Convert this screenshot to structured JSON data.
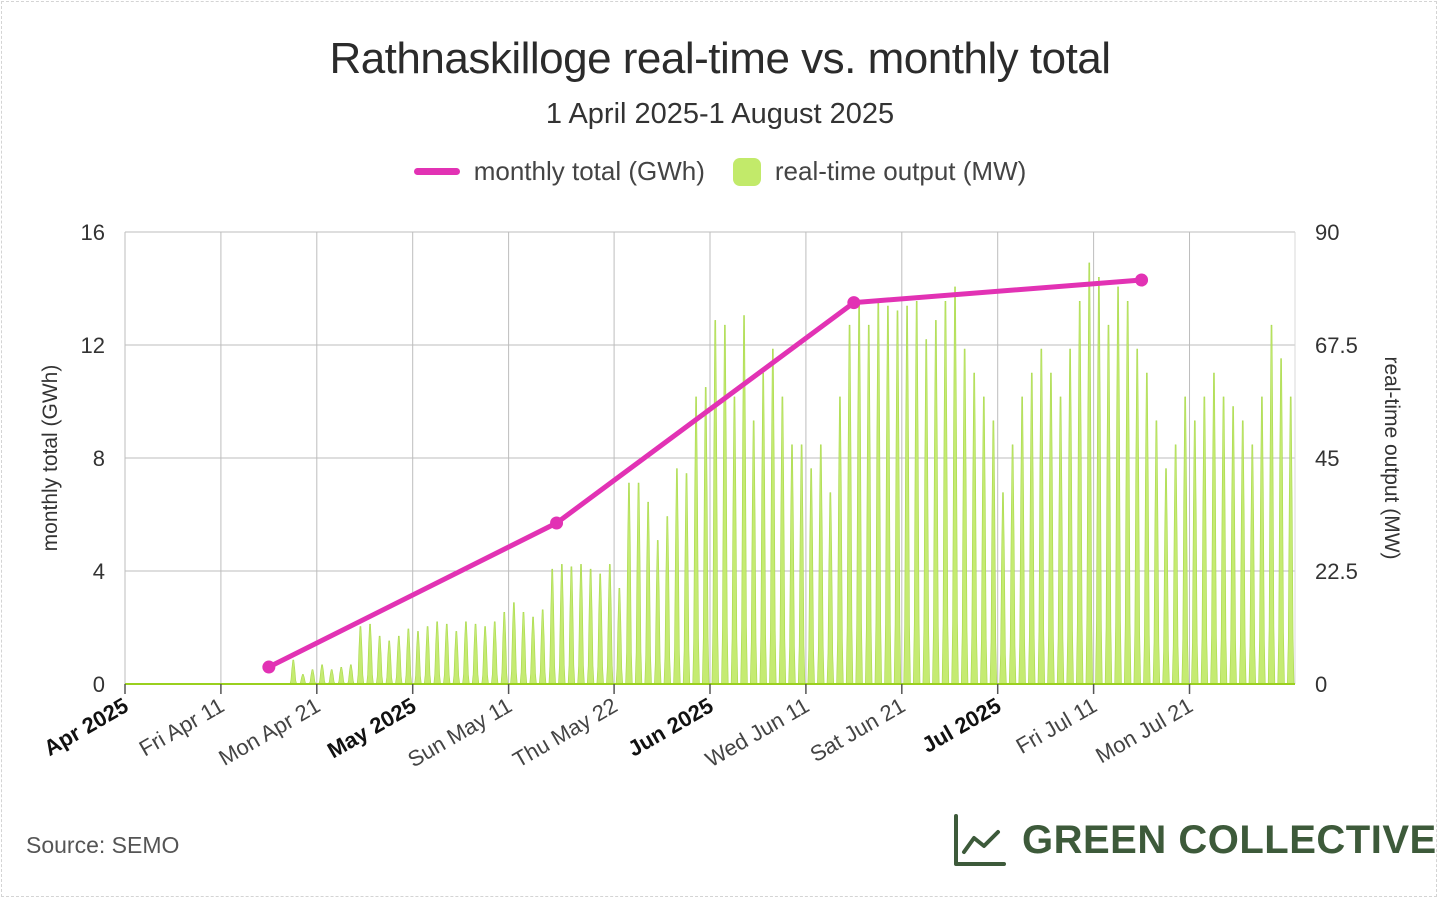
{
  "page": {
    "title": "Rathnaskilloge real-time vs. monthly total",
    "subtitle": "1 April 2025-1 August 2025",
    "source": "Source: SEMO",
    "brand": "GREEN COLLECTIVE"
  },
  "legend": [
    {
      "label": "monthly total (GWh)",
      "color": "#e232b4",
      "kind": "line"
    },
    {
      "label": "real-time output (MW)",
      "color": "#c2ea6a",
      "kind": "area"
    }
  ],
  "chart_data": {
    "type": "line",
    "title": "Rathnaskilloge real-time vs. monthly total",
    "subtitle": "1 April 2025-1 August 2025",
    "y_left": {
      "label": "monthly total (GWh)",
      "ticks": [
        "0",
        "4",
        "8",
        "12",
        "16"
      ],
      "range": [
        0,
        16
      ]
    },
    "y_right": {
      "label": "real-time output (MW)",
      "ticks": [
        "0",
        "22.5",
        "45",
        "67.5",
        "90"
      ],
      "range": [
        0,
        90
      ]
    },
    "x_axis": {
      "range": [
        "2025-04-01",
        "2025-08-01"
      ],
      "ticks": [
        {
          "date": "2025-04-01",
          "label": "Apr 2025",
          "bold": true
        },
        {
          "date": "2025-04-11",
          "label": "Fri Apr 11",
          "bold": false
        },
        {
          "date": "2025-04-21",
          "label": "Mon Apr 21",
          "bold": false
        },
        {
          "date": "2025-05-01",
          "label": "May 2025",
          "bold": true
        },
        {
          "date": "2025-05-11",
          "label": "Sun May 11",
          "bold": false
        },
        {
          "date": "2025-05-22",
          "label": "Thu May 22",
          "bold": false
        },
        {
          "date": "2025-06-01",
          "label": "Jun 2025",
          "bold": true
        },
        {
          "date": "2025-06-11",
          "label": "Wed Jun 11",
          "bold": false
        },
        {
          "date": "2025-06-21",
          "label": "Sat Jun 21",
          "bold": false
        },
        {
          "date": "2025-07-01",
          "label": "Jul 2025",
          "bold": true
        },
        {
          "date": "2025-07-11",
          "label": "Fri Jul 11",
          "bold": false
        },
        {
          "date": "2025-07-21",
          "label": "Mon Jul 21",
          "bold": false
        }
      ]
    },
    "grid": true,
    "series": [
      {
        "name": "monthly total (GWh)",
        "axis": "left",
        "color": "#e232b4",
        "points": [
          {
            "x": "2025-04-16",
            "y": 0.6
          },
          {
            "x": "2025-05-16",
            "y": 5.7
          },
          {
            "x": "2025-06-16",
            "y": 13.5
          },
          {
            "x": "2025-07-16",
            "y": 14.3
          }
        ]
      },
      {
        "name": "real-time output (MW)",
        "axis": "right",
        "color": "#c2ea6a",
        "type": "area",
        "daily_peaks": [
          {
            "x": "2025-04-01",
            "y": 0
          },
          {
            "x": "2025-04-02",
            "y": 0
          },
          {
            "x": "2025-04-03",
            "y": 0
          },
          {
            "x": "2025-04-04",
            "y": 0
          },
          {
            "x": "2025-04-05",
            "y": 0
          },
          {
            "x": "2025-04-06",
            "y": 0
          },
          {
            "x": "2025-04-07",
            "y": 0
          },
          {
            "x": "2025-04-08",
            "y": 0
          },
          {
            "x": "2025-04-09",
            "y": 0
          },
          {
            "x": "2025-04-10",
            "y": 0
          },
          {
            "x": "2025-04-11",
            "y": 0
          },
          {
            "x": "2025-04-12",
            "y": 0
          },
          {
            "x": "2025-04-13",
            "y": 0
          },
          {
            "x": "2025-04-14",
            "y": 0
          },
          {
            "x": "2025-04-15",
            "y": 0
          },
          {
            "x": "2025-04-16",
            "y": 0
          },
          {
            "x": "2025-04-17",
            "y": 0
          },
          {
            "x": "2025-04-18",
            "y": 5
          },
          {
            "x": "2025-04-19",
            "y": 2
          },
          {
            "x": "2025-04-20",
            "y": 3
          },
          {
            "x": "2025-04-21",
            "y": 4
          },
          {
            "x": "2025-04-22",
            "y": 3
          },
          {
            "x": "2025-04-23",
            "y": 3.5
          },
          {
            "x": "2025-04-24",
            "y": 4
          },
          {
            "x": "2025-04-25",
            "y": 12
          },
          {
            "x": "2025-04-26",
            "y": 12.5
          },
          {
            "x": "2025-04-27",
            "y": 10
          },
          {
            "x": "2025-04-28",
            "y": 9
          },
          {
            "x": "2025-04-29",
            "y": 10
          },
          {
            "x": "2025-04-30",
            "y": 11.5
          },
          {
            "x": "2025-05-01",
            "y": 11
          },
          {
            "x": "2025-05-02",
            "y": 12
          },
          {
            "x": "2025-05-03",
            "y": 13
          },
          {
            "x": "2025-05-04",
            "y": 12.5
          },
          {
            "x": "2025-05-05",
            "y": 11
          },
          {
            "x": "2025-05-06",
            "y": 13
          },
          {
            "x": "2025-05-07",
            "y": 12.5
          },
          {
            "x": "2025-05-08",
            "y": 12
          },
          {
            "x": "2025-05-09",
            "y": 13
          },
          {
            "x": "2025-05-10",
            "y": 15
          },
          {
            "x": "2025-05-11",
            "y": 17
          },
          {
            "x": "2025-05-12",
            "y": 15
          },
          {
            "x": "2025-05-13",
            "y": 14
          },
          {
            "x": "2025-05-14",
            "y": 15.5
          },
          {
            "x": "2025-05-15",
            "y": 24
          },
          {
            "x": "2025-05-16",
            "y": 25
          },
          {
            "x": "2025-05-17",
            "y": 24.5
          },
          {
            "x": "2025-05-18",
            "y": 25
          },
          {
            "x": "2025-05-19",
            "y": 24
          },
          {
            "x": "2025-05-20",
            "y": 23
          },
          {
            "x": "2025-05-21",
            "y": 25
          },
          {
            "x": "2025-05-22",
            "y": 20
          },
          {
            "x": "2025-05-23",
            "y": 42
          },
          {
            "x": "2025-05-24",
            "y": 42
          },
          {
            "x": "2025-05-25",
            "y": 38
          },
          {
            "x": "2025-05-26",
            "y": 30
          },
          {
            "x": "2025-05-27",
            "y": 35
          },
          {
            "x": "2025-05-28",
            "y": 45
          },
          {
            "x": "2025-05-29",
            "y": 44
          },
          {
            "x": "2025-05-30",
            "y": 60
          },
          {
            "x": "2025-05-31",
            "y": 62
          },
          {
            "x": "2025-06-01",
            "y": 76
          },
          {
            "x": "2025-06-02",
            "y": 75
          },
          {
            "x": "2025-06-03",
            "y": 60
          },
          {
            "x": "2025-06-04",
            "y": 77
          },
          {
            "x": "2025-06-05",
            "y": 55
          },
          {
            "x": "2025-06-06",
            "y": 65
          },
          {
            "x": "2025-06-07",
            "y": 70
          },
          {
            "x": "2025-06-08",
            "y": 60
          },
          {
            "x": "2025-06-09",
            "y": 50
          },
          {
            "x": "2025-06-10",
            "y": 50
          },
          {
            "x": "2025-06-11",
            "y": 45
          },
          {
            "x": "2025-06-12",
            "y": 50
          },
          {
            "x": "2025-06-13",
            "y": 40
          },
          {
            "x": "2025-06-14",
            "y": 60
          },
          {
            "x": "2025-06-15",
            "y": 75
          },
          {
            "x": "2025-06-16",
            "y": 80
          },
          {
            "x": "2025-06-17",
            "y": 75
          },
          {
            "x": "2025-06-18",
            "y": 80
          },
          {
            "x": "2025-06-19",
            "y": 79
          },
          {
            "x": "2025-06-20",
            "y": 78
          },
          {
            "x": "2025-06-21",
            "y": 79
          },
          {
            "x": "2025-06-22",
            "y": 80
          },
          {
            "x": "2025-06-23",
            "y": 72
          },
          {
            "x": "2025-06-24",
            "y": 76
          },
          {
            "x": "2025-06-25",
            "y": 80
          },
          {
            "x": "2025-06-26",
            "y": 83
          },
          {
            "x": "2025-06-27",
            "y": 70
          },
          {
            "x": "2025-06-28",
            "y": 65
          },
          {
            "x": "2025-06-29",
            "y": 60
          },
          {
            "x": "2025-06-30",
            "y": 55
          },
          {
            "x": "2025-07-01",
            "y": 40
          },
          {
            "x": "2025-07-02",
            "y": 50
          },
          {
            "x": "2025-07-03",
            "y": 60
          },
          {
            "x": "2025-07-04",
            "y": 65
          },
          {
            "x": "2025-07-05",
            "y": 70
          },
          {
            "x": "2025-07-06",
            "y": 65
          },
          {
            "x": "2025-07-07",
            "y": 60
          },
          {
            "x": "2025-07-08",
            "y": 70
          },
          {
            "x": "2025-07-09",
            "y": 80
          },
          {
            "x": "2025-07-10",
            "y": 88
          },
          {
            "x": "2025-07-11",
            "y": 85
          },
          {
            "x": "2025-07-12",
            "y": 75
          },
          {
            "x": "2025-07-13",
            "y": 83
          },
          {
            "x": "2025-07-14",
            "y": 80
          },
          {
            "x": "2025-07-15",
            "y": 70
          },
          {
            "x": "2025-07-16",
            "y": 65
          },
          {
            "x": "2025-07-17",
            "y": 55
          },
          {
            "x": "2025-07-18",
            "y": 45
          },
          {
            "x": "2025-07-19",
            "y": 50
          },
          {
            "x": "2025-07-20",
            "y": 60
          },
          {
            "x": "2025-07-21",
            "y": 55
          },
          {
            "x": "2025-07-22",
            "y": 60
          },
          {
            "x": "2025-07-23",
            "y": 65
          },
          {
            "x": "2025-07-24",
            "y": 60
          },
          {
            "x": "2025-07-25",
            "y": 58
          },
          {
            "x": "2025-07-26",
            "y": 55
          },
          {
            "x": "2025-07-27",
            "y": 50
          },
          {
            "x": "2025-07-28",
            "y": 60
          },
          {
            "x": "2025-07-29",
            "y": 75
          },
          {
            "x": "2025-07-30",
            "y": 68
          },
          {
            "x": "2025-07-31",
            "y": 60
          }
        ]
      }
    ]
  }
}
